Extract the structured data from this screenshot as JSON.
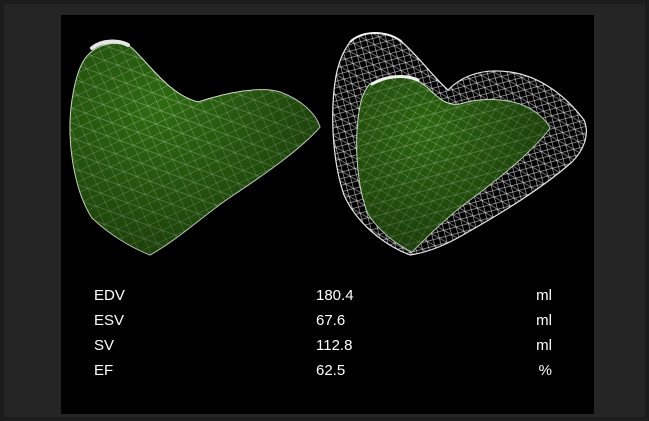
{
  "colors": {
    "background": "#000000",
    "frame": "#252525",
    "mesh_fill": "#2f6b12",
    "mesh_lines": "#ffffff",
    "text": "#ffffff"
  },
  "figures": [
    {
      "name": "end-diastolic-heart-mesh"
    },
    {
      "name": "end-systolic-heart-mesh-with-diastolic-outline"
    }
  ],
  "metrics": [
    {
      "name": "EDV",
      "value": "180.4",
      "unit": "ml"
    },
    {
      "name": "ESV",
      "value": "67.6",
      "unit": "ml"
    },
    {
      "name": "SV",
      "value": "112.8",
      "unit": "ml"
    },
    {
      "name": "EF",
      "value": "62.5",
      "unit": "%"
    }
  ]
}
